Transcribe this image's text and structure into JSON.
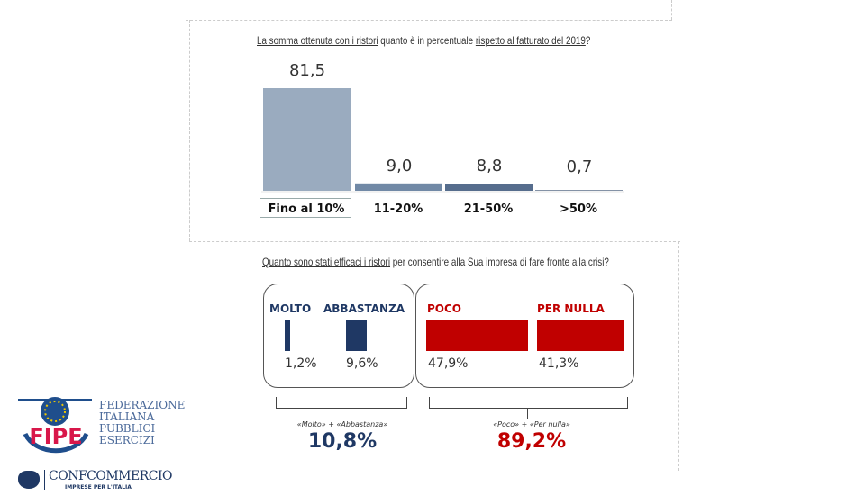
{
  "chart_data": [
    {
      "type": "bar",
      "title_parts": [
        {
          "text": "La somma ottenuta con i ristori",
          "u": true
        },
        {
          "text": " quanto è in percentuale ",
          "u": false
        },
        {
          "text": "rispetto al fatturato del 2019",
          "u": true
        },
        {
          "text": "?",
          "u": false
        }
      ],
      "categories": [
        "Fino al 10%",
        "11-20%",
        "21-50%",
        ">50%"
      ],
      "values": [
        81.5,
        9.0,
        8.8,
        0.7
      ],
      "value_labels": [
        "81,5",
        "9,0",
        "8,8",
        "0,7"
      ],
      "colors": [
        "#9aabbf",
        "#7189a6",
        "#566d8d",
        "#3f5573"
      ],
      "ylim": [
        0,
        100
      ]
    },
    {
      "type": "bar",
      "title_parts": [
        {
          "text": "Quanto sono stati efficaci i ristori",
          "u": true
        },
        {
          "text": " per consentire alla Sua impresa di fare fronte alla crisi?",
          "u": false
        }
      ],
      "categories": [
        "MOLTO",
        "ABBASTANZA",
        "POCO",
        "PER NULLA"
      ],
      "values": [
        1.2,
        9.6,
        47.9,
        41.3
      ],
      "value_labels": [
        "1,2%",
        "9,6%",
        "47,9%",
        "41,3%"
      ],
      "colors": [
        "#1f3864",
        "#1f3864",
        "#c00000",
        "#c00000"
      ],
      "groups": [
        {
          "label": "«Molto» + «Abbastanza»",
          "value": "10,8%",
          "color": "#1f3864"
        },
        {
          "label": "«Poco» + «Per nulla»",
          "value": "89,2%",
          "color": "#c00000"
        }
      ]
    }
  ],
  "logo": {
    "fipe": "FIPE",
    "fipe_text": [
      "FEDERAZIONE",
      "ITALIANA",
      "PUBBLICI",
      "ESERCIZI"
    ],
    "conf": "CONFCOMMERCIO",
    "conf_sub": "IMPRESE PER L'ITALIA"
  }
}
